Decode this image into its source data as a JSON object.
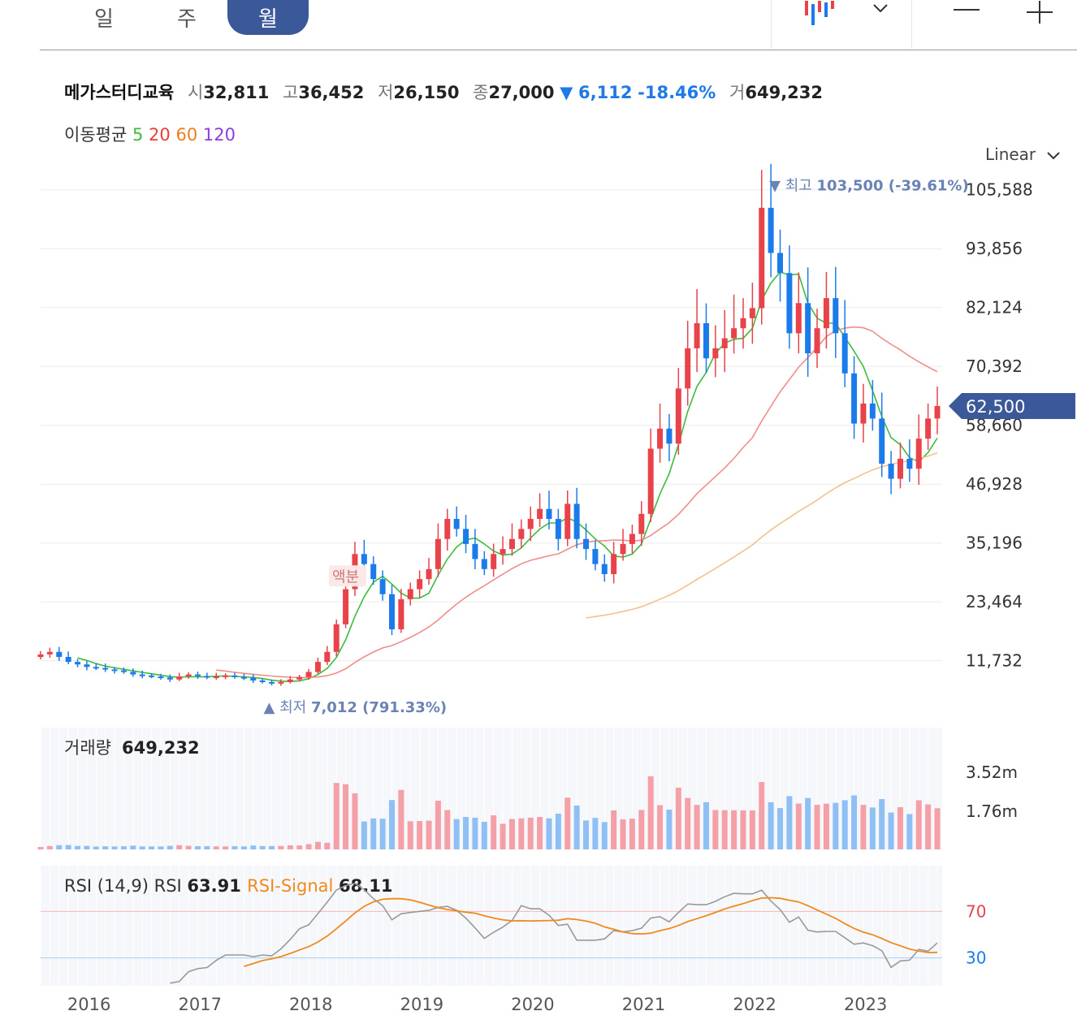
{
  "tabs": [
    {
      "label": "일",
      "active": false
    },
    {
      "label": "주",
      "active": false
    },
    {
      "label": "월",
      "active": true
    }
  ],
  "toolbar": {
    "chart_type_icon": "candlestick-icon",
    "dropdown_icon": "chevron-down-icon",
    "zoom_out_icon": "minus-icon",
    "zoom_in_icon": "plus-icon"
  },
  "info": {
    "name": "메가스터디교육",
    "open_label": "시",
    "open": "32,811",
    "high_label": "고",
    "high": "36,452",
    "low_label": "저",
    "low": "26,150",
    "close_label": "종",
    "close": "27,000",
    "change_arrow": "▼",
    "change": "6,112",
    "change_pct": "-18.46%",
    "volume_label": "거",
    "volume": "649,232"
  },
  "ma": {
    "label": "이동평균",
    "p5": "5",
    "p20": "20",
    "p60": "60",
    "p120": "120"
  },
  "scale": {
    "label": "Linear"
  },
  "colors": {
    "up": "#e8424a",
    "down": "#1c7bea",
    "ma5": "#3cbc3c",
    "ma20": "#f08c8c",
    "ma60": "#f5c08a",
    "ma120": "#8a54e0",
    "accent": "#3b5998",
    "rsi": "#999999",
    "rsi_signal": "#ef8a1c"
  },
  "chart_data": {
    "type": "candlestick",
    "price": {
      "y_ticks": [
        "105,588",
        "93,856",
        "82,124",
        "70,392",
        "58,660",
        "46,928",
        "35,196",
        "23,464",
        "11,732"
      ],
      "y_tick_values": [
        105588,
        93856,
        82124,
        70392,
        58660,
        46928,
        35196,
        23464,
        11732
      ],
      "ylim": [
        1000,
        107000
      ],
      "current_price_label": "62,500",
      "current_price": 62500,
      "high_annotation": {
        "prefix": "▼ 최고",
        "value": "103,500 (-39.61%)",
        "price": 103500,
        "date": "2022-03"
      },
      "low_annotation": {
        "prefix": "▲ 최저",
        "value": "7,012 (791.33%)",
        "price": 7012,
        "date": "2017-09"
      },
      "event_label": "액분",
      "event_date": "2018-06",
      "monthly_close_estimate": [
        [
          "2015-08",
          13000
        ],
        [
          "2015-09",
          13500
        ],
        [
          "2015-10",
          12500
        ],
        [
          "2015-11",
          11500
        ],
        [
          "2015-12",
          11000
        ],
        [
          "2016-01",
          10500
        ],
        [
          "2016-02",
          10300
        ],
        [
          "2016-03",
          10000
        ],
        [
          "2016-04",
          9800
        ],
        [
          "2016-05",
          9500
        ],
        [
          "2016-06",
          9000
        ],
        [
          "2016-07",
          8800
        ],
        [
          "2016-08",
          8600
        ],
        [
          "2016-09",
          8400
        ],
        [
          "2016-10",
          8000
        ],
        [
          "2016-11",
          8600
        ],
        [
          "2016-12",
          9000
        ],
        [
          "2017-01",
          8700
        ],
        [
          "2017-02",
          8400
        ],
        [
          "2017-03",
          8600
        ],
        [
          "2017-04",
          8800
        ],
        [
          "2017-05",
          8500
        ],
        [
          "2017-06",
          8300
        ],
        [
          "2017-07",
          7800
        ],
        [
          "2017-08",
          7500
        ],
        [
          "2017-09",
          7200
        ],
        [
          "2017-10",
          7500
        ],
        [
          "2017-11",
          8000
        ],
        [
          "2017-12",
          8500
        ],
        [
          "2018-01",
          9500
        ],
        [
          "2018-02",
          11500
        ],
        [
          "2018-03",
          13500
        ],
        [
          "2018-04",
          19000
        ],
        [
          "2018-05",
          26000
        ],
        [
          "2018-06",
          33000
        ],
        [
          "2018-07",
          31000
        ],
        [
          "2018-08",
          28000
        ],
        [
          "2018-09",
          25000
        ],
        [
          "2018-10",
          18000
        ],
        [
          "2018-11",
          24000
        ],
        [
          "2018-12",
          26000
        ],
        [
          "2019-01",
          28000
        ],
        [
          "2019-02",
          30000
        ],
        [
          "2019-03",
          36000
        ],
        [
          "2019-04",
          40000
        ],
        [
          "2019-05",
          38000
        ],
        [
          "2019-06",
          35000
        ],
        [
          "2019-07",
          32000
        ],
        [
          "2019-08",
          30000
        ],
        [
          "2019-09",
          33000
        ],
        [
          "2019-10",
          34000
        ],
        [
          "2019-11",
          36000
        ],
        [
          "2019-12",
          38000
        ],
        [
          "2020-01",
          40000
        ],
        [
          "2020-02",
          42000
        ],
        [
          "2020-03",
          40000
        ],
        [
          "2020-04",
          36000
        ],
        [
          "2020-05",
          43000
        ],
        [
          "2020-06",
          36000
        ],
        [
          "2020-07",
          34000
        ],
        [
          "2020-08",
          31000
        ],
        [
          "2020-09",
          29000
        ],
        [
          "2020-10",
          33000
        ],
        [
          "2020-11",
          35000
        ],
        [
          "2020-12",
          37000
        ],
        [
          "2021-01",
          41000
        ],
        [
          "2021-02",
          54000
        ],
        [
          "2021-03",
          58000
        ],
        [
          "2021-04",
          55000
        ],
        [
          "2021-05",
          66000
        ],
        [
          "2021-06",
          74000
        ],
        [
          "2021-07",
          79000
        ],
        [
          "2021-08",
          72000
        ],
        [
          "2021-09",
          74000
        ],
        [
          "2021-10",
          76000
        ],
        [
          "2021-11",
          78000
        ],
        [
          "2021-12",
          80000
        ],
        [
          "2022-01",
          82000
        ],
        [
          "2022-02",
          102000
        ],
        [
          "2022-03",
          93000
        ],
        [
          "2022-04",
          89000
        ],
        [
          "2022-05",
          77000
        ],
        [
          "2022-06",
          83000
        ],
        [
          "2022-07",
          73000
        ],
        [
          "2022-08",
          78000
        ],
        [
          "2022-09",
          84000
        ],
        [
          "2022-10",
          77000
        ],
        [
          "2022-11",
          69000
        ],
        [
          "2022-12",
          59000
        ],
        [
          "2023-01",
          63000
        ],
        [
          "2023-02",
          60000
        ],
        [
          "2023-03",
          51000
        ],
        [
          "2023-04",
          48000
        ],
        [
          "2023-05",
          52000
        ],
        [
          "2023-06",
          50000
        ],
        [
          "2023-07",
          56000
        ],
        [
          "2023-08",
          60000
        ],
        [
          "2023-09",
          62500
        ]
      ]
    },
    "volume": {
      "label": "거래량",
      "value": "649,232",
      "y_ticks": [
        "3.52m",
        "1.76m"
      ]
    },
    "rsi": {
      "label": "RSI (14,9)",
      "rsi_label": "RSI",
      "rsi_value": "63.91",
      "signal_label": "RSI-Signal",
      "signal_value": "68.11",
      "levels": [
        "70",
        "30"
      ]
    },
    "x_ticks": [
      "2016",
      "2017",
      "2018",
      "2019",
      "2020",
      "2021",
      "2022",
      "2023"
    ],
    "legend": "top-left"
  }
}
